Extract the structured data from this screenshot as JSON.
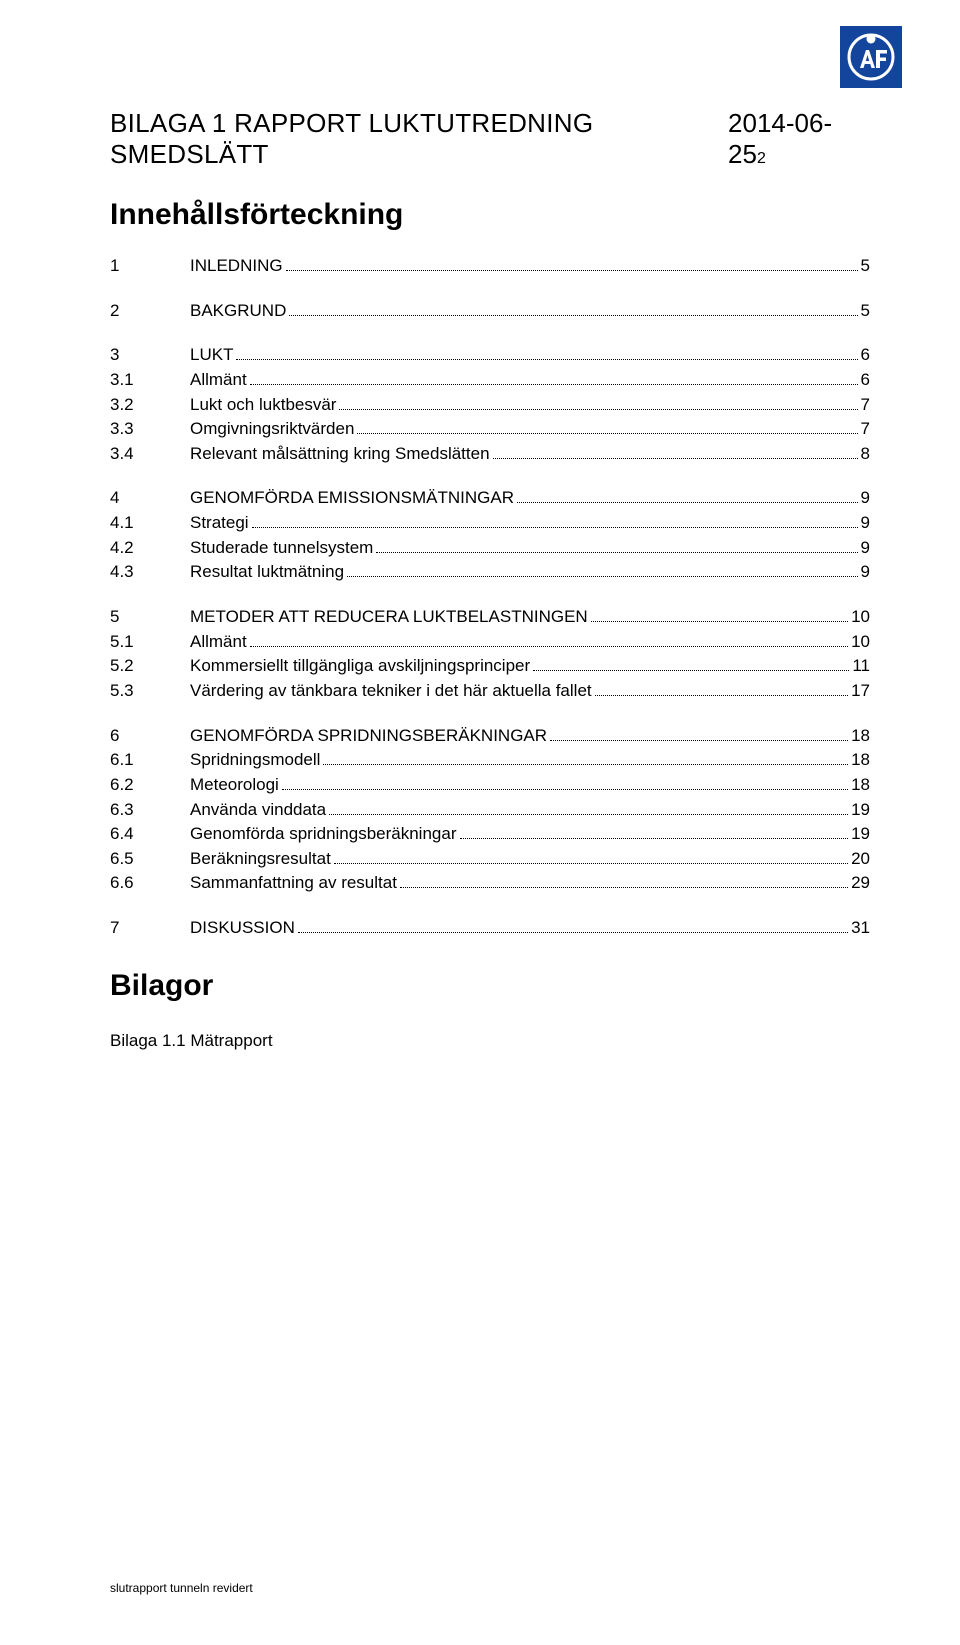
{
  "header": {
    "title": "BILAGA 1 RAPPORT LUKTUTREDNING SMEDSLÄTT",
    "date_main": "2014-06-25",
    "date_small": "2"
  },
  "toc_title": "Innehållsförteckning",
  "toc": [
    [
      {
        "num": "1",
        "label": "INLEDNING",
        "page": "5",
        "caps": true
      }
    ],
    [
      {
        "num": "2",
        "label": "BAKGRUND",
        "page": "5",
        "caps": true
      }
    ],
    [
      {
        "num": "3",
        "label": "LUKT",
        "page": "6",
        "caps": true
      },
      {
        "num": "3.1",
        "label": "Allmänt",
        "page": "6"
      },
      {
        "num": "3.2",
        "label": "Lukt och luktbesvär",
        "page": "7"
      },
      {
        "num": "3.3",
        "label": "Omgivningsriktvärden",
        "page": "7"
      },
      {
        "num": "3.4",
        "label": "Relevant målsättning kring Smedslätten",
        "page": "8"
      }
    ],
    [
      {
        "num": "4",
        "label": "GENOMFÖRDA EMISSIONSMÄTNINGAR",
        "page": "9",
        "caps": true
      },
      {
        "num": "4.1",
        "label": "Strategi",
        "page": "9"
      },
      {
        "num": "4.2",
        "label": "Studerade tunnelsystem",
        "page": "9"
      },
      {
        "num": "4.3",
        "label": "Resultat luktmätning",
        "page": "9"
      }
    ],
    [
      {
        "num": "5",
        "label": "METODER ATT REDUCERA LUKTBELASTNINGEN",
        "page": "10",
        "caps": true
      },
      {
        "num": "5.1",
        "label": "Allmänt",
        "page": "10"
      },
      {
        "num": "5.2",
        "label": "Kommersiellt tillgängliga avskiljningsprinciper",
        "page": "11"
      },
      {
        "num": "5.3",
        "label": "Värdering av tänkbara tekniker i det här aktuella fallet",
        "page": "17"
      }
    ],
    [
      {
        "num": "6",
        "label": "GENOMFÖRDA SPRIDNINGSBERÄKNINGAR",
        "page": "18",
        "caps": true
      },
      {
        "num": "6.1",
        "label": "Spridningsmodell",
        "page": "18"
      },
      {
        "num": "6.2",
        "label": "Meteorologi",
        "page": "18"
      },
      {
        "num": "6.3",
        "label": "Använda vinddata",
        "page": "19"
      },
      {
        "num": "6.4",
        "label": "Genomförda spridningsberäkningar",
        "page": "19"
      },
      {
        "num": "6.5",
        "label": "Beräkningsresultat",
        "page": "20"
      },
      {
        "num": "6.6",
        "label": "Sammanfattning av resultat",
        "page": "29"
      }
    ],
    [
      {
        "num": "7",
        "label": "DISKUSSION",
        "page": "31",
        "caps": true
      }
    ]
  ],
  "bilagor_title": "Bilagor",
  "bilaga_line": "Bilaga 1.1 Mätrapport",
  "footer": "slutrapport tunneln revidert",
  "colors": {
    "logo_bg": "#14459c",
    "logo_fg": "#ffffff",
    "text": "#000000",
    "page_bg": "#ffffff"
  }
}
